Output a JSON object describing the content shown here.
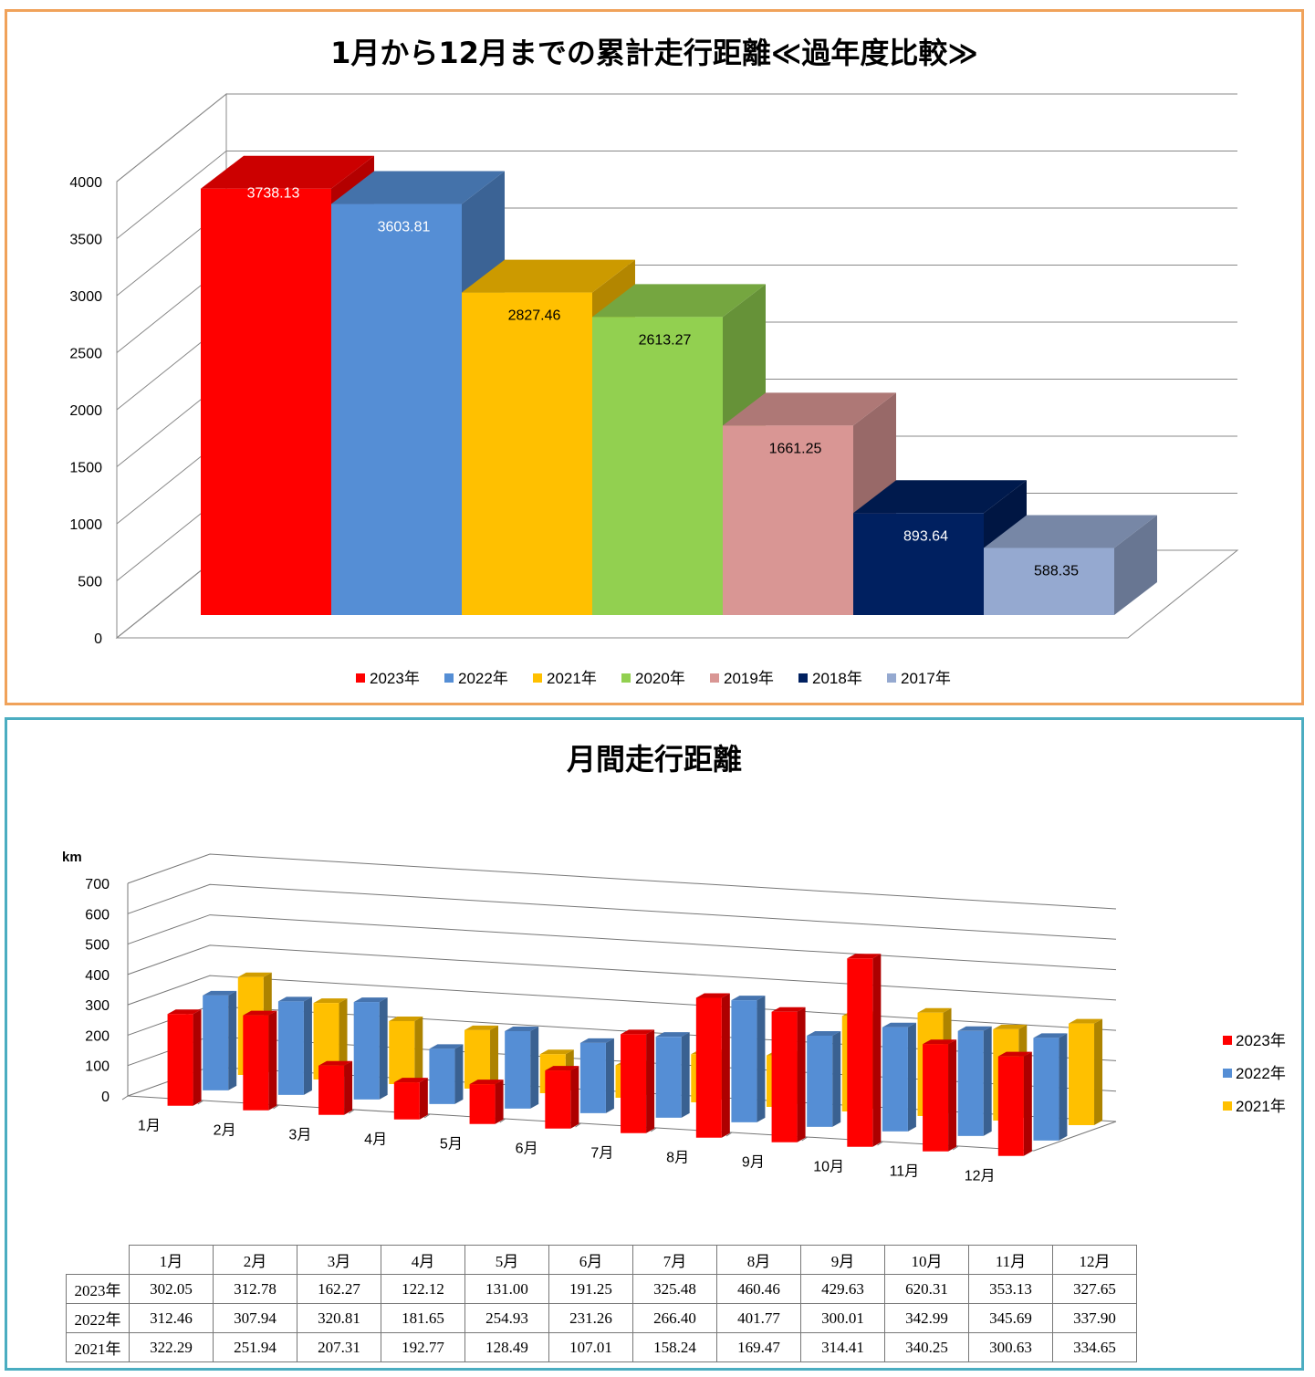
{
  "chart_data": [
    {
      "type": "bar",
      "title": "1月から12月までの累計走行距離≪過年度比較≫",
      "categories": [
        "2023年",
        "2022年",
        "2021年",
        "2020年",
        "2019年",
        "2018年",
        "2017年"
      ],
      "values": [
        3738.13,
        3603.81,
        2827.46,
        2613.27,
        1661.25,
        893.64,
        588.35
      ],
      "value_labels": [
        "3738.13",
        "3603.81",
        "2827.46",
        "2613.27",
        "1661.25",
        "893.64",
        "588.35"
      ],
      "colors": [
        "#ff0000",
        "#558ed5",
        "#ffc000",
        "#92d050",
        "#d99694",
        "#002060",
        "#95a9d0"
      ],
      "label_colors": [
        "#ffffff",
        "#ffffff",
        "#000000",
        "#000000",
        "#000000",
        "#ffffff",
        "#000000"
      ],
      "yticks": [
        0,
        500,
        1000,
        1500,
        2000,
        2500,
        3000,
        3500,
        4000
      ],
      "ylim": [
        0,
        4000
      ],
      "legend_position": "bottom",
      "grid": true
    },
    {
      "type": "bar",
      "title": "月間走行距離",
      "ylabel": "km",
      "categories": [
        "1月",
        "2月",
        "3月",
        "4月",
        "5月",
        "6月",
        "7月",
        "8月",
        "9月",
        "10月",
        "11月",
        "12月"
      ],
      "series": [
        {
          "name": "2023年",
          "color": "#ff0000",
          "values": [
            302.05,
            312.78,
            162.27,
            122.12,
            131.0,
            191.25,
            325.48,
            460.46,
            429.63,
            620.31,
            353.13,
            327.65
          ],
          "labels": [
            "302.05",
            "312.78",
            "162.27",
            "122.12",
            "131.00",
            "191.25",
            "325.48",
            "460.46",
            "429.63",
            "620.31",
            "353.13",
            "327.65"
          ]
        },
        {
          "name": "2022年",
          "color": "#558ed5",
          "values": [
            312.46,
            307.94,
            320.81,
            181.65,
            254.93,
            231.26,
            266.4,
            401.77,
            300.01,
            342.99,
            345.69,
            337.9
          ],
          "labels": [
            "312.46",
            "307.94",
            "320.81",
            "181.65",
            "254.93",
            "231.26",
            "266.40",
            "401.77",
            "300.01",
            "342.99",
            "345.69",
            "337.90"
          ]
        },
        {
          "name": "2021年",
          "color": "#ffc000",
          "values": [
            322.29,
            251.94,
            207.31,
            192.77,
            128.49,
            107.01,
            158.24,
            169.47,
            314.41,
            340.25,
            300.63,
            334.65
          ],
          "labels": [
            "322.29",
            "251.94",
            "207.31",
            "192.77",
            "128.49",
            "107.01",
            "158.24",
            "169.47",
            "314.41",
            "340.25",
            "300.63",
            "334.65"
          ]
        }
      ],
      "yticks": [
        0,
        100,
        200,
        300,
        400,
        500,
        600,
        700
      ],
      "ylim": [
        0,
        700
      ],
      "legend_position": "right",
      "grid": true
    }
  ]
}
